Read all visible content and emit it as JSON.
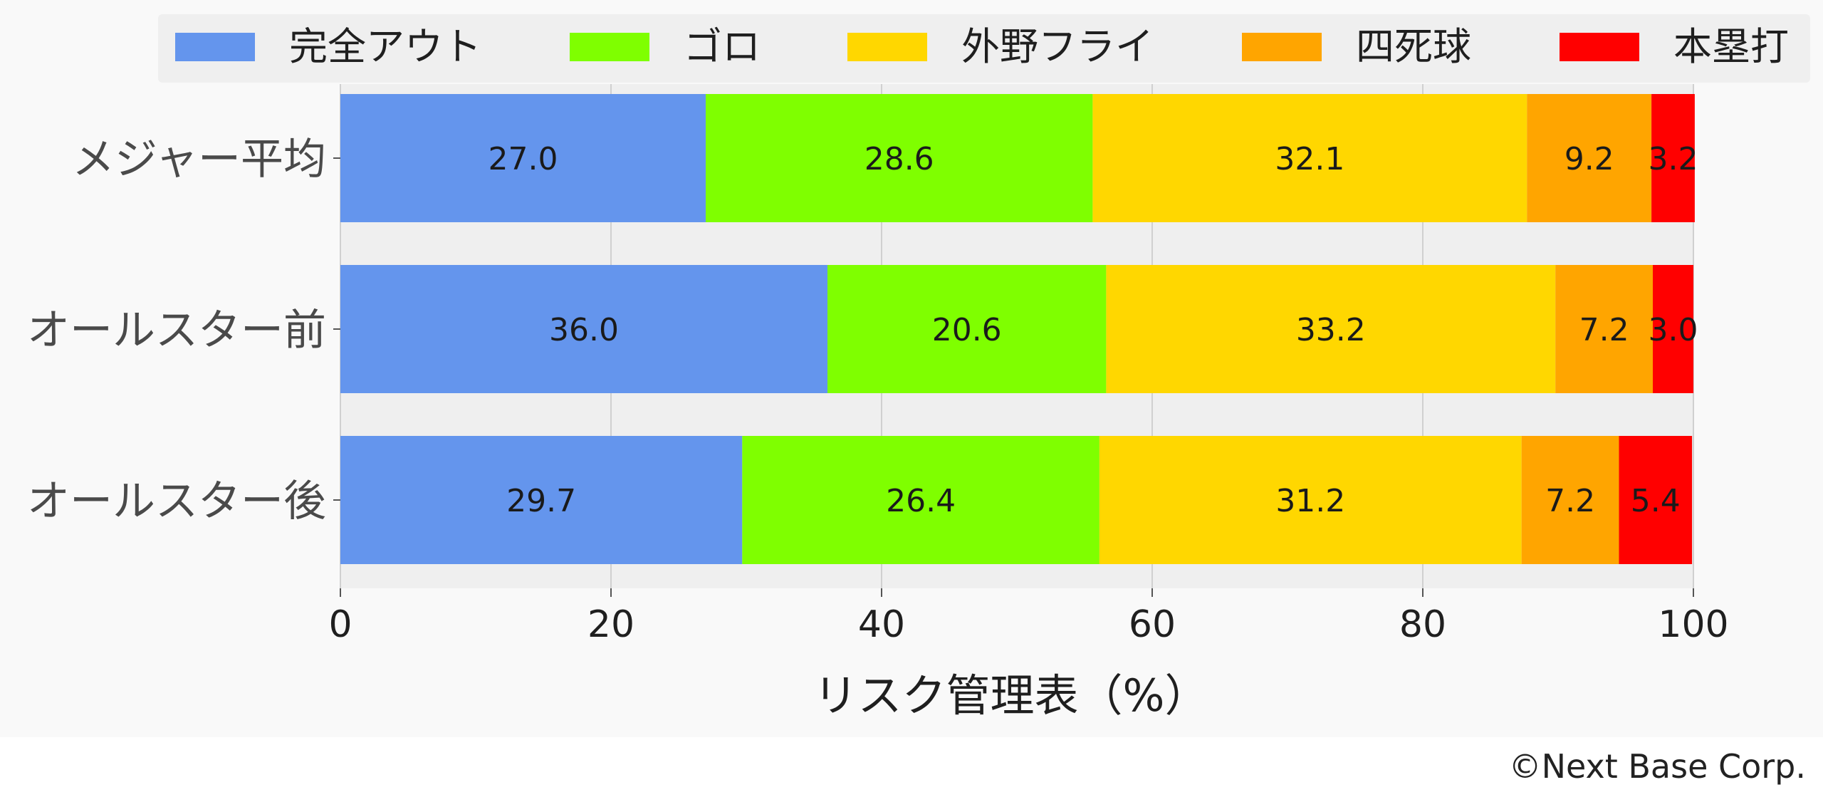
{
  "chart_data": {
    "type": "bar",
    "orientation": "horizontal",
    "stacked": true,
    "categories": [
      "メジャー平均",
      "オールスター前",
      "オールスター後"
    ],
    "series": [
      {
        "name": "完全アウト",
        "color": "#6495ED",
        "values": [
          27.0,
          36.0,
          29.7
        ]
      },
      {
        "name": "ゴロ",
        "color": "#7FFF00",
        "values": [
          28.6,
          20.6,
          26.4
        ]
      },
      {
        "name": "外野フライ",
        "color": "#FFD700",
        "values": [
          32.1,
          33.2,
          31.2
        ]
      },
      {
        "name": "四死球",
        "color": "#FFA500",
        "values": [
          9.2,
          7.2,
          7.2
        ]
      },
      {
        "name": "本塁打",
        "color": "#FF0000",
        "values": [
          3.2,
          3.0,
          5.4
        ]
      }
    ],
    "data_labels": [
      [
        "27.0",
        "28.6",
        "32.1",
        "9.2",
        "3.2"
      ],
      [
        "36.0",
        "20.6",
        "33.2",
        "7.2",
        "3.0"
      ],
      [
        "29.7",
        "26.4",
        "31.2",
        "7.2",
        "5.4"
      ]
    ],
    "xlim": [
      0,
      100
    ],
    "xticks": [
      0,
      20,
      40,
      60,
      80,
      100
    ],
    "xtick_labels": [
      "0",
      "20",
      "40",
      "60",
      "80",
      "100"
    ],
    "xlabel": "リスク管理表（%）",
    "ylabel": "",
    "title": "",
    "grid": true,
    "legend_position": "top",
    "background_color": "#f9f9f9",
    "plot_background_color": "#efefef",
    "grid_color": "#d0d0d0"
  },
  "credit": "©Next Base Corp."
}
